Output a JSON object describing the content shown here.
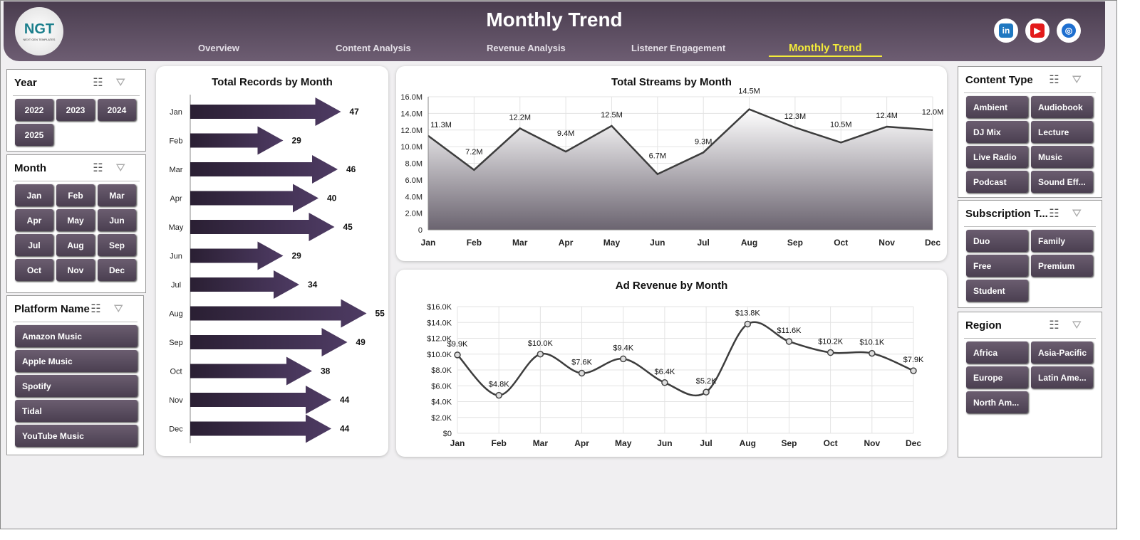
{
  "header": {
    "title": "Monthly Trend",
    "logo_text": "NGT",
    "logo_sub": "NEXT GEN TEMPLATES",
    "nav": [
      "Overview",
      "Content Analysis",
      "Revenue Analysis",
      "Listener Engagement",
      "Monthly Trend"
    ],
    "active_nav": "Monthly Trend",
    "social": [
      "linkedin-icon",
      "youtube-icon",
      "globe-icon"
    ]
  },
  "slicers": {
    "year": {
      "title": "Year",
      "items": [
        "2022",
        "2023",
        "2024",
        "2025"
      ]
    },
    "month": {
      "title": "Month",
      "items": [
        "Jan",
        "Feb",
        "Mar",
        "Apr",
        "May",
        "Jun",
        "Jul",
        "Aug",
        "Sep",
        "Oct",
        "Nov",
        "Dec"
      ]
    },
    "platform": {
      "title": "Platform Name",
      "items": [
        "Amazon Music",
        "Apple Music",
        "Spotify",
        "Tidal",
        "YouTube Music"
      ]
    },
    "content_type": {
      "title": "Content Type",
      "items": [
        "Ambient",
        "Audiobook",
        "DJ Mix",
        "Lecture",
        "Live Radio",
        "Music",
        "Podcast",
        "Sound Eff..."
      ]
    },
    "subscription": {
      "title": "Subscription T...",
      "items": [
        "Duo",
        "Family",
        "Free",
        "Premium",
        "Student"
      ]
    },
    "region": {
      "title": "Region",
      "items": [
        "Africa",
        "Asia-Pacific",
        "Europe",
        "Latin Ame...",
        "North Am..."
      ]
    }
  },
  "chart_data": [
    {
      "type": "bar",
      "title": "Total Records by Month",
      "orientation": "horizontal",
      "categories": [
        "Jan",
        "Feb",
        "Mar",
        "Apr",
        "May",
        "Jun",
        "Jul",
        "Aug",
        "Sep",
        "Oct",
        "Nov",
        "Dec"
      ],
      "values": [
        47,
        29,
        46,
        40,
        45,
        29,
        34,
        55,
        49,
        38,
        44,
        44
      ],
      "color": "#3f2e4f"
    },
    {
      "type": "area",
      "title": "Total Streams by Month",
      "categories": [
        "Jan",
        "Feb",
        "Mar",
        "Apr",
        "May",
        "Jun",
        "Jul",
        "Aug",
        "Sep",
        "Oct",
        "Nov",
        "Dec"
      ],
      "values": [
        11.3,
        7.2,
        12.2,
        9.4,
        12.5,
        6.7,
        9.3,
        14.5,
        12.3,
        10.5,
        12.4,
        12.0
      ],
      "labels": [
        "11.3M",
        "7.2M",
        "12.2M",
        "9.4M",
        "12.5M",
        "6.7M",
        "9.3M",
        "14.5M",
        "12.3M",
        "10.5M",
        "12.4M",
        "12.0M"
      ],
      "unit": "M",
      "ylim": [
        0,
        16
      ],
      "yticks": [
        "0",
        "2.0M",
        "4.0M",
        "6.0M",
        "8.0M",
        "10.0M",
        "12.0M",
        "14.0M",
        "16.0M"
      ],
      "grid": true
    },
    {
      "type": "line",
      "title": "Ad Revenue  by Month",
      "categories": [
        "Jan",
        "Feb",
        "Mar",
        "Apr",
        "May",
        "Jun",
        "Jul",
        "Aug",
        "Sep",
        "Oct",
        "Nov",
        "Dec"
      ],
      "values": [
        9.9,
        4.8,
        10.0,
        7.6,
        9.4,
        6.4,
        5.2,
        13.8,
        11.6,
        10.2,
        10.1,
        7.9
      ],
      "labels": [
        "$9.9K",
        "$4.8K",
        "$10.0K",
        "$7.6K",
        "$9.4K",
        "$6.4K",
        "$5.2K",
        "$13.8K",
        "$11.6K",
        "$10.2K",
        "$10.1K",
        "$7.9K"
      ],
      "ylim": [
        0,
        16
      ],
      "yticks": [
        "$0",
        "$2.0K",
        "$4.0K",
        "$6.0K",
        "$8.0K",
        "$10.0K",
        "$12.0K",
        "$14.0K",
        "$16.0K"
      ],
      "smooth": true,
      "grid": true
    }
  ]
}
